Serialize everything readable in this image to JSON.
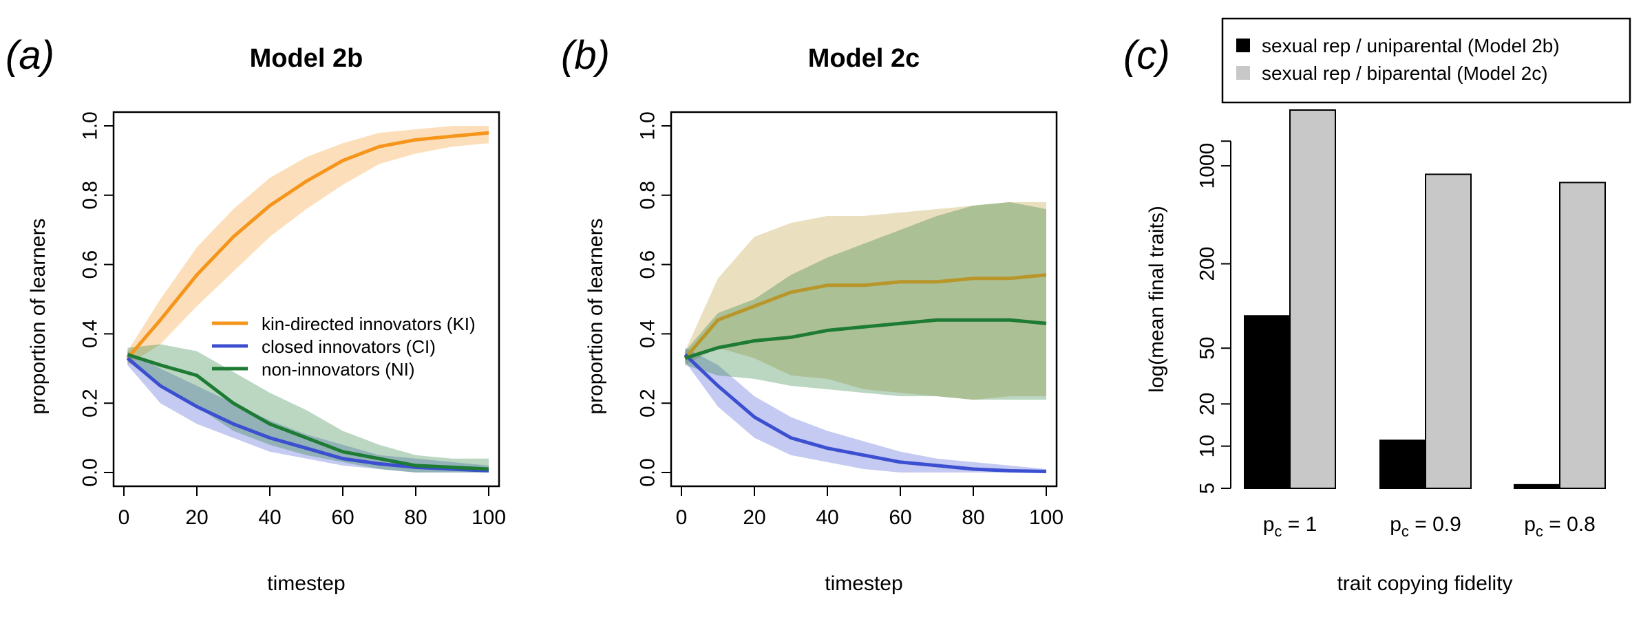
{
  "chart_data": [
    {
      "type": "line",
      "panel_label": "(a)",
      "title": "Model 2b",
      "xlabel": "timestep",
      "ylabel": "proportion of learners",
      "xlim": [
        0,
        100
      ],
      "ylim": [
        0,
        1
      ],
      "xticks": [
        "0",
        "20",
        "40",
        "60",
        "80",
        "100"
      ],
      "yticks": [
        "0.0",
        "0.2",
        "0.4",
        "0.6",
        "0.8",
        "1.0"
      ],
      "grid": false,
      "legend_position": "center-right",
      "x": [
        1,
        10,
        20,
        30,
        40,
        50,
        60,
        70,
        80,
        90,
        100
      ],
      "series": [
        {
          "name": "kin-directed innovators (KI)",
          "color": "#f5951b",
          "values": [
            0.33,
            0.44,
            0.57,
            0.68,
            0.77,
            0.84,
            0.9,
            0.94,
            0.96,
            0.97,
            0.98
          ],
          "lower": [
            0.31,
            0.37,
            0.48,
            0.58,
            0.68,
            0.76,
            0.83,
            0.89,
            0.92,
            0.94,
            0.95
          ],
          "upper": [
            0.35,
            0.5,
            0.65,
            0.76,
            0.85,
            0.91,
            0.95,
            0.98,
            0.99,
            1.0,
            1.0
          ]
        },
        {
          "name": "closed innovators (CI)",
          "color": "#3b4fd0",
          "values": [
            0.33,
            0.25,
            0.19,
            0.14,
            0.1,
            0.07,
            0.04,
            0.025,
            0.015,
            0.01,
            0.005
          ],
          "lower": [
            0.31,
            0.2,
            0.14,
            0.1,
            0.06,
            0.04,
            0.02,
            0.01,
            0.0,
            0.0,
            0.0
          ],
          "upper": [
            0.35,
            0.3,
            0.25,
            0.2,
            0.15,
            0.11,
            0.08,
            0.05,
            0.04,
            0.03,
            0.02
          ]
        },
        {
          "name": "non-innovators (NI)",
          "color": "#1e7b34",
          "values": [
            0.34,
            0.31,
            0.28,
            0.2,
            0.14,
            0.1,
            0.06,
            0.04,
            0.02,
            0.015,
            0.01
          ],
          "lower": [
            0.32,
            0.25,
            0.19,
            0.12,
            0.08,
            0.05,
            0.03,
            0.01,
            0.0,
            0.0,
            0.0
          ],
          "upper": [
            0.36,
            0.37,
            0.35,
            0.29,
            0.23,
            0.18,
            0.12,
            0.08,
            0.05,
            0.04,
            0.04
          ]
        }
      ]
    },
    {
      "type": "line",
      "panel_label": "(b)",
      "title": "Model 2c",
      "xlabel": "timestep",
      "ylabel": "proportion of learners",
      "xlim": [
        0,
        100
      ],
      "ylim": [
        0,
        1
      ],
      "xticks": [
        "0",
        "20",
        "40",
        "60",
        "80",
        "100"
      ],
      "yticks": [
        "0.0",
        "0.2",
        "0.4",
        "0.6",
        "0.8",
        "1.0"
      ],
      "grid": false,
      "x": [
        1,
        10,
        20,
        30,
        40,
        50,
        60,
        70,
        80,
        90,
        100
      ],
      "series": [
        {
          "color": "#b8962a",
          "values": [
            0.33,
            0.44,
            0.48,
            0.52,
            0.54,
            0.54,
            0.55,
            0.55,
            0.56,
            0.56,
            0.57
          ],
          "lower": [
            0.31,
            0.36,
            0.33,
            0.28,
            0.27,
            0.24,
            0.23,
            0.22,
            0.21,
            0.22,
            0.22
          ],
          "upper": [
            0.35,
            0.56,
            0.68,
            0.72,
            0.74,
            0.74,
            0.75,
            0.76,
            0.77,
            0.78,
            0.78
          ]
        },
        {
          "color": "#3b4fd0",
          "values": [
            0.34,
            0.25,
            0.16,
            0.1,
            0.07,
            0.05,
            0.03,
            0.02,
            0.01,
            0.005,
            0.003
          ],
          "lower": [
            0.32,
            0.19,
            0.1,
            0.05,
            0.03,
            0.01,
            0.0,
            0.0,
            0.0,
            0.0,
            0.0
          ],
          "upper": [
            0.36,
            0.31,
            0.22,
            0.16,
            0.12,
            0.09,
            0.06,
            0.04,
            0.03,
            0.02,
            0.01
          ]
        },
        {
          "color": "#1e7b34",
          "values": [
            0.33,
            0.36,
            0.38,
            0.39,
            0.41,
            0.42,
            0.43,
            0.44,
            0.44,
            0.44,
            0.43
          ],
          "lower": [
            0.31,
            0.28,
            0.27,
            0.25,
            0.24,
            0.23,
            0.22,
            0.22,
            0.21,
            0.21,
            0.21
          ],
          "upper": [
            0.35,
            0.46,
            0.5,
            0.57,
            0.62,
            0.66,
            0.7,
            0.74,
            0.77,
            0.78,
            0.76
          ]
        }
      ]
    },
    {
      "type": "bar",
      "panel_label": "(c)",
      "xlabel": "trait copying fidelity",
      "ylabel": "log(mean final traits)",
      "y_scale": "log",
      "ylim": [
        5,
        2500
      ],
      "yticks": [
        "5",
        "10",
        "20",
        "50",
        "200",
        "1000"
      ],
      "ytick_values": [
        5,
        10,
        20,
        50,
        200,
        1000
      ],
      "categories": [
        "p<sub>c</sub> = 1",
        "p<sub>c</sub> = 0.9",
        "p<sub>c</sub> = 0.8"
      ],
      "legend_position": "top",
      "series": [
        {
          "name": "sexual rep / uniparental (Model 2b)",
          "color": "#000000",
          "values": [
            85,
            11,
            5.3
          ]
        },
        {
          "name": "sexual rep / biparental (Model 2c)",
          "color": "#c8c8c8",
          "values": [
            2500,
            870,
            760
          ]
        }
      ]
    }
  ]
}
